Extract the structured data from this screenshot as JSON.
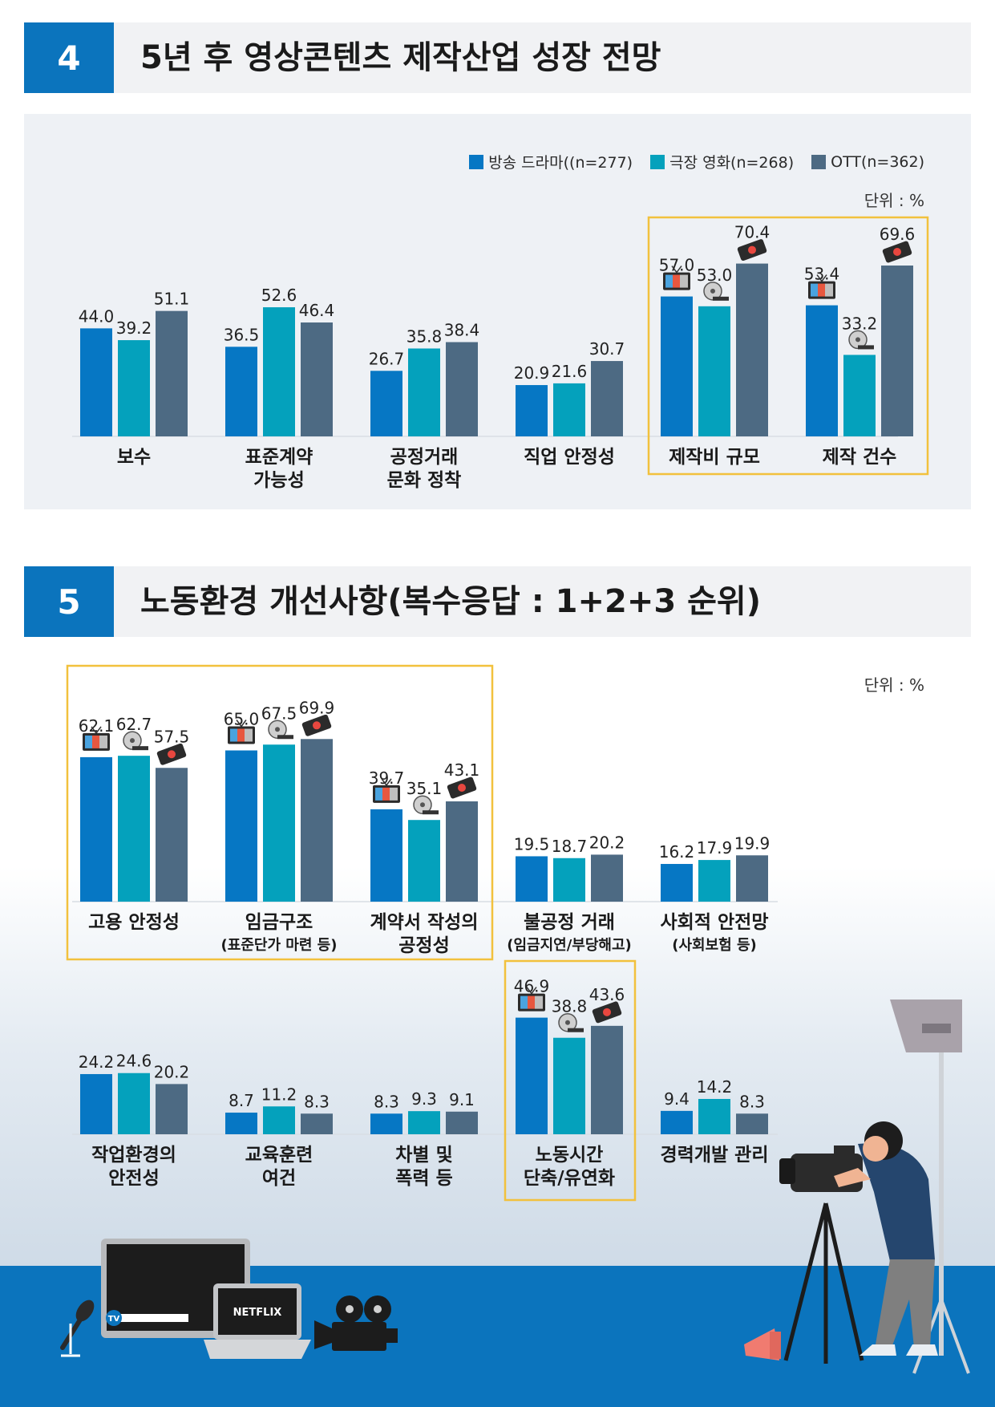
{
  "colors": {
    "drama": "#0677c4",
    "movie": "#04a1bc",
    "ott": "#4d6a83",
    "header_blue": "#0b74bd",
    "highlight": "#f2c13d"
  },
  "section4": {
    "number": "4",
    "title": "5년 후 영상콘텐츠 제작산업 성장 전망",
    "unit": "단위 : %",
    "legend": [
      {
        "label": "방송 드라마((n=277)",
        "color": "#0677c4"
      },
      {
        "label": "극장 영화(n=268)",
        "color": "#04a1bc"
      },
      {
        "label": "OTT(n=362)",
        "color": "#4d6a83"
      }
    ]
  },
  "section5": {
    "number": "5",
    "title": "노동환경 개선사항(복수응답 : 1+2+3 순위)",
    "unit": "단위 : %"
  },
  "chart_data": [
    {
      "type": "bar",
      "title": "5년 후 영상콘텐츠 제작산업 성장 전망",
      "unit": "%",
      "categories": [
        "보수",
        "표준계약\n가능성",
        "공정거래\n문화 정착",
        "직업 안정성",
        "제작비 규모",
        "제작 건수"
      ],
      "series": [
        {
          "name": "방송 드라마((n=277)",
          "values": [
            44.0,
            36.5,
            26.7,
            20.9,
            57.0,
            53.4
          ]
        },
        {
          "name": "극장 영화(n=268)",
          "values": [
            39.2,
            52.6,
            35.8,
            21.6,
            53.0,
            33.2
          ]
        },
        {
          "name": "OTT(n=362)",
          "values": [
            51.1,
            46.4,
            38.4,
            30.7,
            70.4,
            69.6
          ]
        }
      ],
      "highlighted_categories": [
        "제작비 규모",
        "제작 건수"
      ],
      "legend_position": "top-right"
    },
    {
      "type": "bar",
      "title": "노동환경 개선사항(복수응답 : 1+2+3 순위)",
      "unit": "%",
      "categories": [
        "고용 안정성",
        "임금구조",
        "계약서 작성의\n공정성",
        "불공정 거래",
        "사회적 안전망"
      ],
      "subtitles": [
        "",
        "(표준단가 마련 등)",
        "",
        "(임금지연/부당해고)",
        "(사회보험 등)"
      ],
      "series": [
        {
          "name": "방송 드라마((n=277)",
          "values": [
            62.1,
            65.0,
            39.7,
            19.5,
            16.2
          ]
        },
        {
          "name": "극장 영화(n=268)",
          "values": [
            62.7,
            67.5,
            35.1,
            18.7,
            17.9
          ]
        },
        {
          "name": "OTT(n=362)",
          "values": [
            57.5,
            69.9,
            43.1,
            20.2,
            19.9
          ]
        }
      ],
      "highlighted_categories": [
        "고용 안정성",
        "임금구조",
        "계약서 작성의\n공정성"
      ]
    },
    {
      "type": "bar",
      "unit": "%",
      "categories": [
        "작업환경의\n안전성",
        "교육훈련\n여건",
        "차별 및\n폭력 등",
        "노동시간\n단축/유연화",
        "경력개발 관리"
      ],
      "series": [
        {
          "name": "방송 드라마((n=277)",
          "values": [
            24.2,
            8.7,
            8.3,
            46.9,
            9.4
          ]
        },
        {
          "name": "극장 영화(n=268)",
          "values": [
            24.6,
            11.2,
            9.3,
            38.8,
            14.2
          ]
        },
        {
          "name": "OTT(n=362)",
          "values": [
            20.2,
            8.3,
            9.1,
            43.6,
            8.3
          ]
        }
      ],
      "highlighted_categories": [
        "노동시간\n단축/유연화"
      ]
    }
  ],
  "illustration": {
    "netflix_text": "NETFLIX",
    "tv_badge": "TV"
  }
}
